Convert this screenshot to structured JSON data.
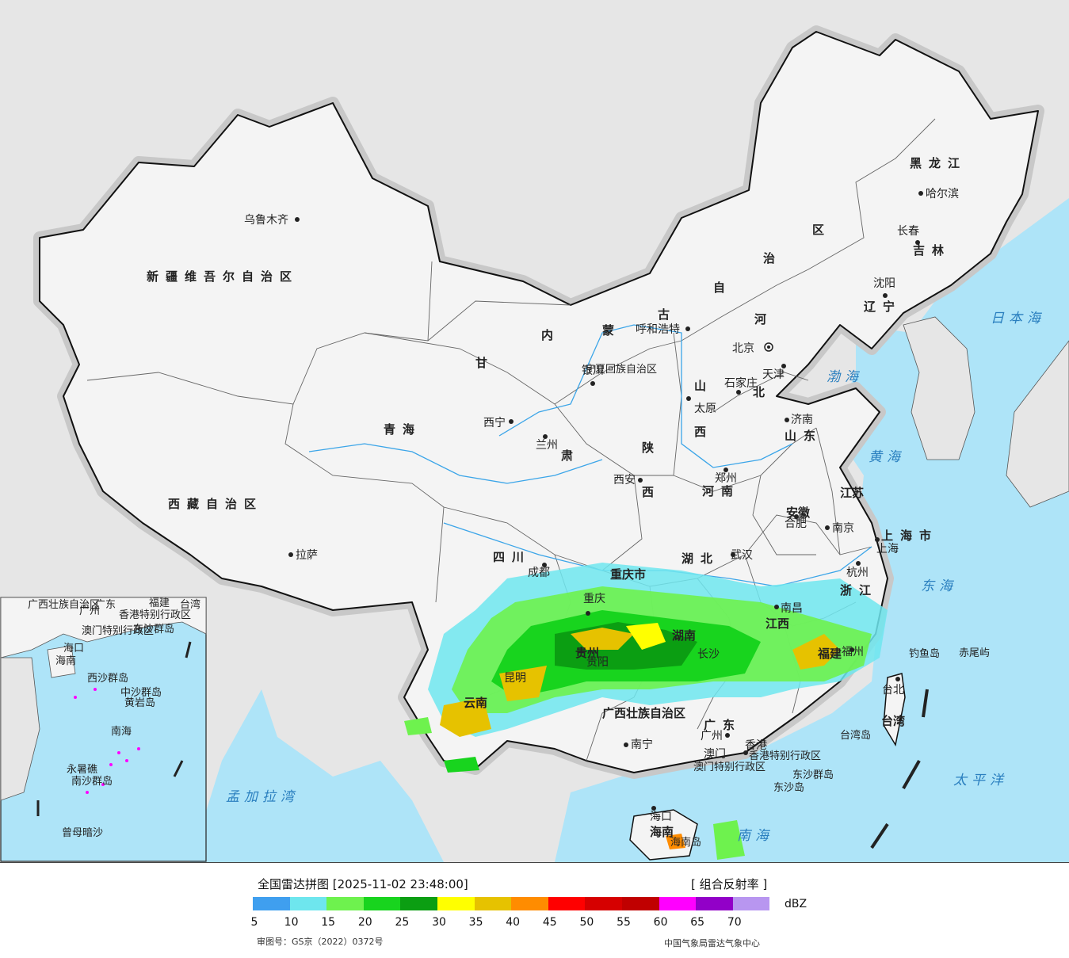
{
  "legend": {
    "title": "全国雷达拼图 [2025-11-02 23:48:00]",
    "product": "[ 组合反射率 ]",
    "unit": "dBZ",
    "ticks": [
      "5",
      "10",
      "15",
      "20",
      "25",
      "30",
      "35",
      "40",
      "45",
      "50",
      "55",
      "60",
      "65",
      "70"
    ],
    "colors": [
      "#3f9fef",
      "#6ee6ee",
      "#6ef24e",
      "#18d41e",
      "#0b9e12",
      "#ffff00",
      "#e6c200",
      "#ff8c00",
      "#ff0000",
      "#d60000",
      "#c00000",
      "#ff00ff",
      "#9200c8",
      "#b896f0"
    ],
    "approval": "审图号：GS京（2022）0372号",
    "org": "中国气象局雷达气象中心"
  },
  "map": {
    "colors": {
      "land": "#f4f4f4",
      "foreign": "#e6e6e6",
      "sea": "#aee4f8",
      "river": "#3ba5e8"
    },
    "provinces": {
      "xinjiang": "新疆维吾尔自治区",
      "xizang": "西藏自治区",
      "qinghai": "青海",
      "gansu": "甘",
      "gansu2": "肃",
      "neimenggu": [
        "内",
        "蒙",
        "古",
        "自",
        "治",
        "区"
      ],
      "heilongjiang": "黑龙江",
      "jilin": "吉林",
      "liaoning": "辽宁",
      "hebei": "河",
      "hebei2": "北",
      "shanxi": "山",
      "shanxi2": "西",
      "shandong": "山东",
      "henan": "河南",
      "shaanxi": "陕",
      "shaanxi2": "西",
      "sichuan": "四川",
      "chongqing": "重庆市",
      "hubei": "湖北",
      "anhui": "安徽",
      "jiangsu": "江苏",
      "shanghai": "上海市",
      "zhejiang": "浙江",
      "jiangxi": "江西",
      "hunan": "湖南",
      "guizhou": "贵州",
      "yunnan": "云南",
      "guangxi": "广西壮族自治区",
      "guangdong": "广东",
      "fujian": "福建",
      "taiwan": "台湾",
      "hainan": "海南",
      "ningxia": "宁夏回族自治区",
      "hk": "香港特别行政区",
      "macau": "澳门特别行政区"
    },
    "cities": {
      "urumqi": "乌鲁木齐",
      "lhasa": "拉萨",
      "xining": "西宁",
      "lanzhou": "兰州",
      "yinchuan": "银川",
      "hohhot": "呼和浩特",
      "beijing": "北京",
      "tianjin": "天津",
      "shijiazhuang": "石家庄",
      "taiyuan": "太原",
      "jinan": "济南",
      "zhengzhou": "郑州",
      "xian": "西安",
      "chengdu": "成都",
      "chongqing": "重庆",
      "wuhan": "武汉",
      "hefei": "合肥",
      "nanjing": "南京",
      "shanghai": "上海",
      "hangzhou": "杭州",
      "nanchang": "南昌",
      "fuzhou": "福州",
      "taibei": "台北",
      "guangzhou": "广州",
      "xianggang": "香港",
      "aomen": "澳门",
      "nanning": "南宁",
      "haikou": "海口",
      "shenyang": "沈阳",
      "changchun": "长春",
      "harbin": "哈尔滨",
      "kunming": "昆明",
      "guiyang": "贵阳",
      "changsha": "长沙"
    },
    "seas": {
      "japan": "日本海",
      "bohai": "渤海",
      "huanghai": "黄海",
      "donghai": "东海",
      "taipingyang": "太平洋",
      "nanhai": "南海",
      "bengal": "孟加拉湾"
    },
    "islands": {
      "diaoyu": "钓鱼岛",
      "chiwei": "赤尾屿",
      "dongsha_qundao": "东沙群岛",
      "dongsha": "东沙岛",
      "taiwan_dao": "台湾岛",
      "hainan_dao": "海南岛"
    },
    "inset": {
      "labels": [
        "广西壮族自治区",
        "广州",
        "广东",
        "福建",
        "台湾",
        "香港特别行政区",
        "澳门特别行政区",
        "东沙群岛",
        "海口",
        "海南",
        "西沙群岛",
        "中沙群岛",
        "黄岩岛",
        "南海",
        "永暑礁",
        "南沙群岛",
        "曾母暗沙"
      ]
    }
  }
}
